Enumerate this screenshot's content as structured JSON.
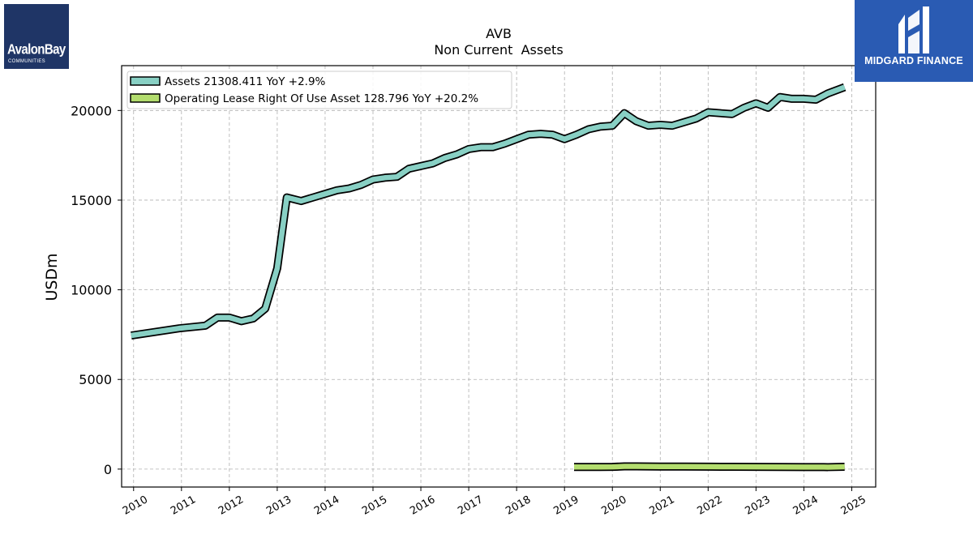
{
  "header": {
    "title": "AVB",
    "subtitle": "Non Current  Assets"
  },
  "logos": {
    "left": {
      "name": "AvalonBay",
      "sub": "COMMUNITIES"
    },
    "right": {
      "name": "MIDGARD FINANCE"
    }
  },
  "colors": {
    "assets": "#88d0c4",
    "lease": "#b3dd6e",
    "outline": "#000000",
    "grid": "#b0b0b0",
    "logo_left_bg": "#1f3566",
    "logo_right_bg": "#2a5bb3"
  },
  "chart_data": {
    "type": "line",
    "title": "AVB",
    "subtitle": "Non Current  Assets",
    "xlabel": "",
    "ylabel": "USDm",
    "xlim": [
      2009.75,
      2025.5
    ],
    "ylim": [
      -1000,
      22500
    ],
    "xticks": [
      2010,
      2011,
      2012,
      2013,
      2014,
      2015,
      2016,
      2017,
      2018,
      2019,
      2020,
      2021,
      2022,
      2023,
      2024,
      2025
    ],
    "yticks": [
      0,
      5000,
      10000,
      15000,
      20000
    ],
    "grid": true,
    "legend_position": "top-left",
    "series": [
      {
        "name": "Assets",
        "legend": "Assets  21308.411 YoY +2.9%",
        "x": [
          2009.95,
          2010.95,
          2011.5,
          2011.75,
          2012.0,
          2012.25,
          2012.5,
          2012.75,
          2013.0,
          2013.2,
          2013.5,
          2013.75,
          2014.0,
          2014.25,
          2014.5,
          2014.75,
          2015.0,
          2015.25,
          2015.5,
          2015.75,
          2016.0,
          2016.25,
          2016.5,
          2016.75,
          2017.0,
          2017.25,
          2017.5,
          2017.75,
          2018.0,
          2018.25,
          2018.5,
          2018.75,
          2019.0,
          2019.25,
          2019.5,
          2019.75,
          2020.0,
          2020.25,
          2020.5,
          2020.75,
          2021.0,
          2021.25,
          2021.5,
          2021.75,
          2022.0,
          2022.25,
          2022.5,
          2022.75,
          2023.0,
          2023.25,
          2023.5,
          2023.75,
          2024.0,
          2024.25,
          2024.5,
          2024.85
        ],
        "values": [
          7450,
          7850,
          8000,
          8450,
          8450,
          8250,
          8400,
          8950,
          11200,
          15150,
          14950,
          15150,
          15350,
          15550,
          15650,
          15850,
          16150,
          16250,
          16300,
          16750,
          16900,
          17050,
          17350,
          17550,
          17850,
          17950,
          17950,
          18150,
          18400,
          18650,
          18700,
          18650,
          18400,
          18650,
          18950,
          19100,
          19150,
          19850,
          19400,
          19150,
          19200,
          19150,
          19350,
          19550,
          19900,
          19850,
          19800,
          20150,
          20400,
          20150,
          20750,
          20650,
          20650,
          20600,
          20950,
          21300
        ]
      },
      {
        "name": "Operating Lease Right Of Use Asset",
        "legend": "Operating Lease Right Of Use Asset  128.796 YoY +20.2%",
        "x": [
          2019.2,
          2019.5,
          2019.75,
          2020.0,
          2020.25,
          2020.5,
          2020.75,
          2021.0,
          2021.5,
          2022.0,
          2022.5,
          2023.0,
          2023.5,
          2024.0,
          2024.5,
          2024.85
        ],
        "values": [
          120,
          120,
          120,
          125,
          150,
          150,
          145,
          140,
          140,
          135,
          130,
          125,
          120,
          115,
          110,
          130
        ]
      }
    ]
  }
}
